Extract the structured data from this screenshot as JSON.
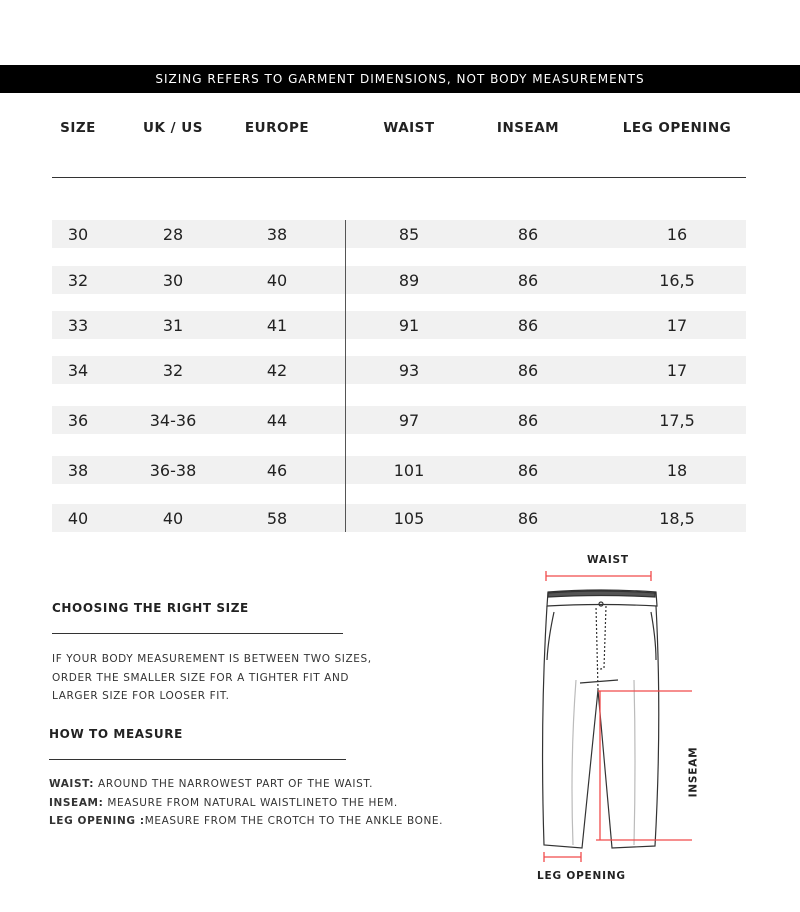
{
  "banner": "SIZING REFERS TO GARMENT DIMENSIONS, NOT BODY MEASUREMENTS",
  "table": {
    "headers": [
      "SIZE",
      "UK / US",
      "EUROPE",
      "WAIST",
      "INSEAM",
      "LEG OPENING"
    ],
    "rows": [
      [
        "30",
        "28",
        "38",
        "85",
        "86",
        "16"
      ],
      [
        "32",
        "30",
        "40",
        "89",
        "86",
        "16,5"
      ],
      [
        "33",
        "31",
        "41",
        "91",
        "86",
        "17"
      ],
      [
        "34",
        "32",
        "42",
        "93",
        "86",
        "17"
      ],
      [
        "36",
        "34-36",
        "44",
        "97",
        "86",
        "17,5"
      ],
      [
        "38",
        "36-38",
        "46",
        "101",
        "86",
        "18"
      ],
      [
        "40",
        "40",
        "58",
        "105",
        "86",
        "18,5"
      ]
    ]
  },
  "choosing": {
    "title": "CHOOSING THE RIGHT SIZE",
    "lines": [
      "IF YOUR BODY MEASUREMENT IS BETWEEN TWO SIZES,",
      "ORDER THE SMALLER SIZE FOR A TIGHTER FIT AND",
      "LARGER SIZE FOR LOOSER FIT."
    ]
  },
  "measure": {
    "title": "HOW TO MEASURE",
    "items": [
      {
        "label": "WAIST:",
        "text": " AROUND THE NARROWEST PART OF THE WAIST."
      },
      {
        "label": "INSEAM:",
        "text": " MEASURE FROM NATURAL WAISTLINETO THE HEM."
      },
      {
        "label": "LEG OPENING :",
        "text": "MEASURE FROM THE CROTCH TO THE ANKLE BONE."
      }
    ]
  },
  "diagram": {
    "waist": "WAIST",
    "inseam": "INSEAM",
    "leg_opening": "LEG OPENING",
    "accent": "#f04a4a"
  }
}
